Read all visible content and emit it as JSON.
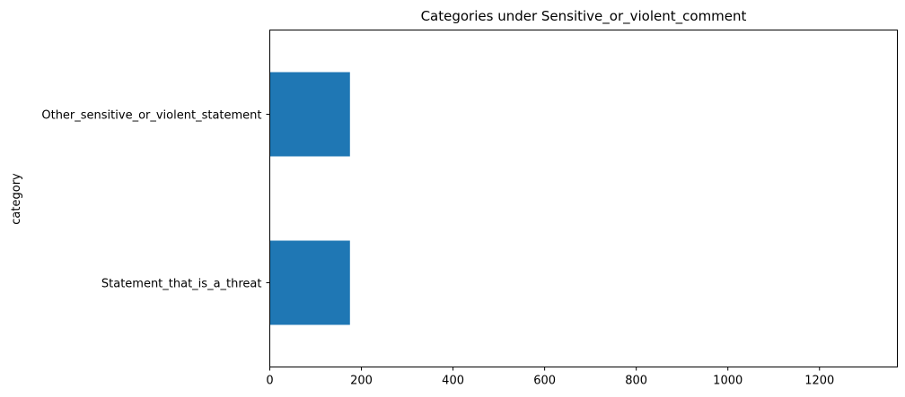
{
  "chart_data": {
    "type": "bar",
    "orientation": "horizontal",
    "title": "Categories under Sensitive_or_violent_comment",
    "xlabel": "",
    "ylabel": "category",
    "categories": [
      "Statement_that_is_a_threat",
      "Other_sensitive_or_violent_statement"
    ],
    "values": [
      175,
      175
    ],
    "xlim": [
      0,
      1370
    ],
    "xticks": [
      0,
      200,
      400,
      600,
      800,
      1000,
      1200
    ],
    "grid": false,
    "bar_color": "#1f77b4"
  }
}
